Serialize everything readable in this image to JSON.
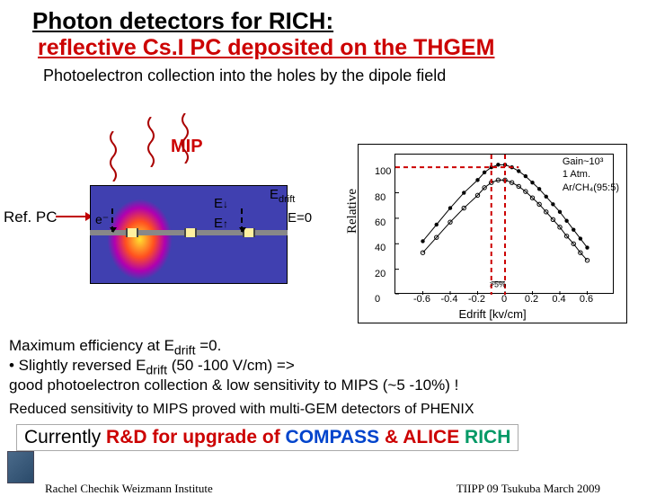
{
  "title": {
    "main": "Photon detectors for RICH:",
    "sub": "reflective Cs.I PC deposited on the THGEM"
  },
  "caption": "Photoelectron  collection into the holes by the dipole field",
  "diagram": {
    "mip_label": "MIP",
    "refpc_label": "Ref. PC",
    "e_minus": "e⁻",
    "E_down": "E",
    "E_up": "E",
    "E_drift": "E",
    "E_drift_sub": "drift",
    "E_zero": "E=0",
    "photon_color": "#aa0000",
    "electron_color": "#009966"
  },
  "chart": {
    "type": "scatter-envelope",
    "xlabel": "Edrift [kv/cm]",
    "ylabel": "Relative",
    "xlim": [
      -0.8,
      0.8
    ],
    "xticks": [
      -0.6,
      -0.4,
      -0.2,
      0,
      0.2,
      0.4,
      0.6
    ],
    "ylim": [
      0,
      110
    ],
    "yticks": [
      0,
      20,
      40,
      60,
      80,
      100
    ],
    "legend": [
      "Gain~10³",
      "1 Atm.",
      "Ar/CH₄(95:5)"
    ],
    "dash_color": "#cc0000",
    "dash_x_range": [
      -0.1,
      0.0
    ],
    "dash_y": 100,
    "series_color": "#000000",
    "x": [
      -0.6,
      -0.5,
      -0.4,
      -0.3,
      -0.2,
      -0.15,
      -0.1,
      -0.05,
      0.0,
      0.05,
      0.1,
      0.15,
      0.2,
      0.25,
      0.3,
      0.35,
      0.4,
      0.45,
      0.5,
      0.55,
      0.6
    ],
    "y_top": [
      42,
      55,
      68,
      80,
      90,
      96,
      100,
      102,
      102,
      100,
      97,
      93,
      88,
      83,
      77,
      71,
      65,
      58,
      51,
      44,
      37
    ],
    "y_bot": [
      33,
      45,
      57,
      68,
      78,
      84,
      88,
      90,
      90,
      88,
      85,
      81,
      76,
      71,
      65,
      59,
      53,
      46,
      40,
      33,
      27
    ]
  },
  "body": {
    "l1a": "Maximum efficiency at E",
    "l1sub": "drift",
    "l1b": " =0.",
    "l2a": " • Slightly reversed E",
    "l2b": " (50 -100 V/cm) =>",
    "l3": "   good photoelectron collection & low sensitivity to MIPS (~5 -10%) !",
    "l4": "Reduced sensitivity to MIPS proved with multi-GEM detectors of PHENIX",
    "rd_pre": "Currently ",
    "rd_main": "R&D for upgrade of ",
    "rd_compass": "COMPASS",
    "rd_amp": " & ",
    "rd_alice": "ALICE",
    "rd_rich": " RICH"
  },
  "footer": {
    "left": "Rachel Chechik   Weizmann Institute",
    "right": "TIIPP 09 Tsukuba March 2009"
  }
}
